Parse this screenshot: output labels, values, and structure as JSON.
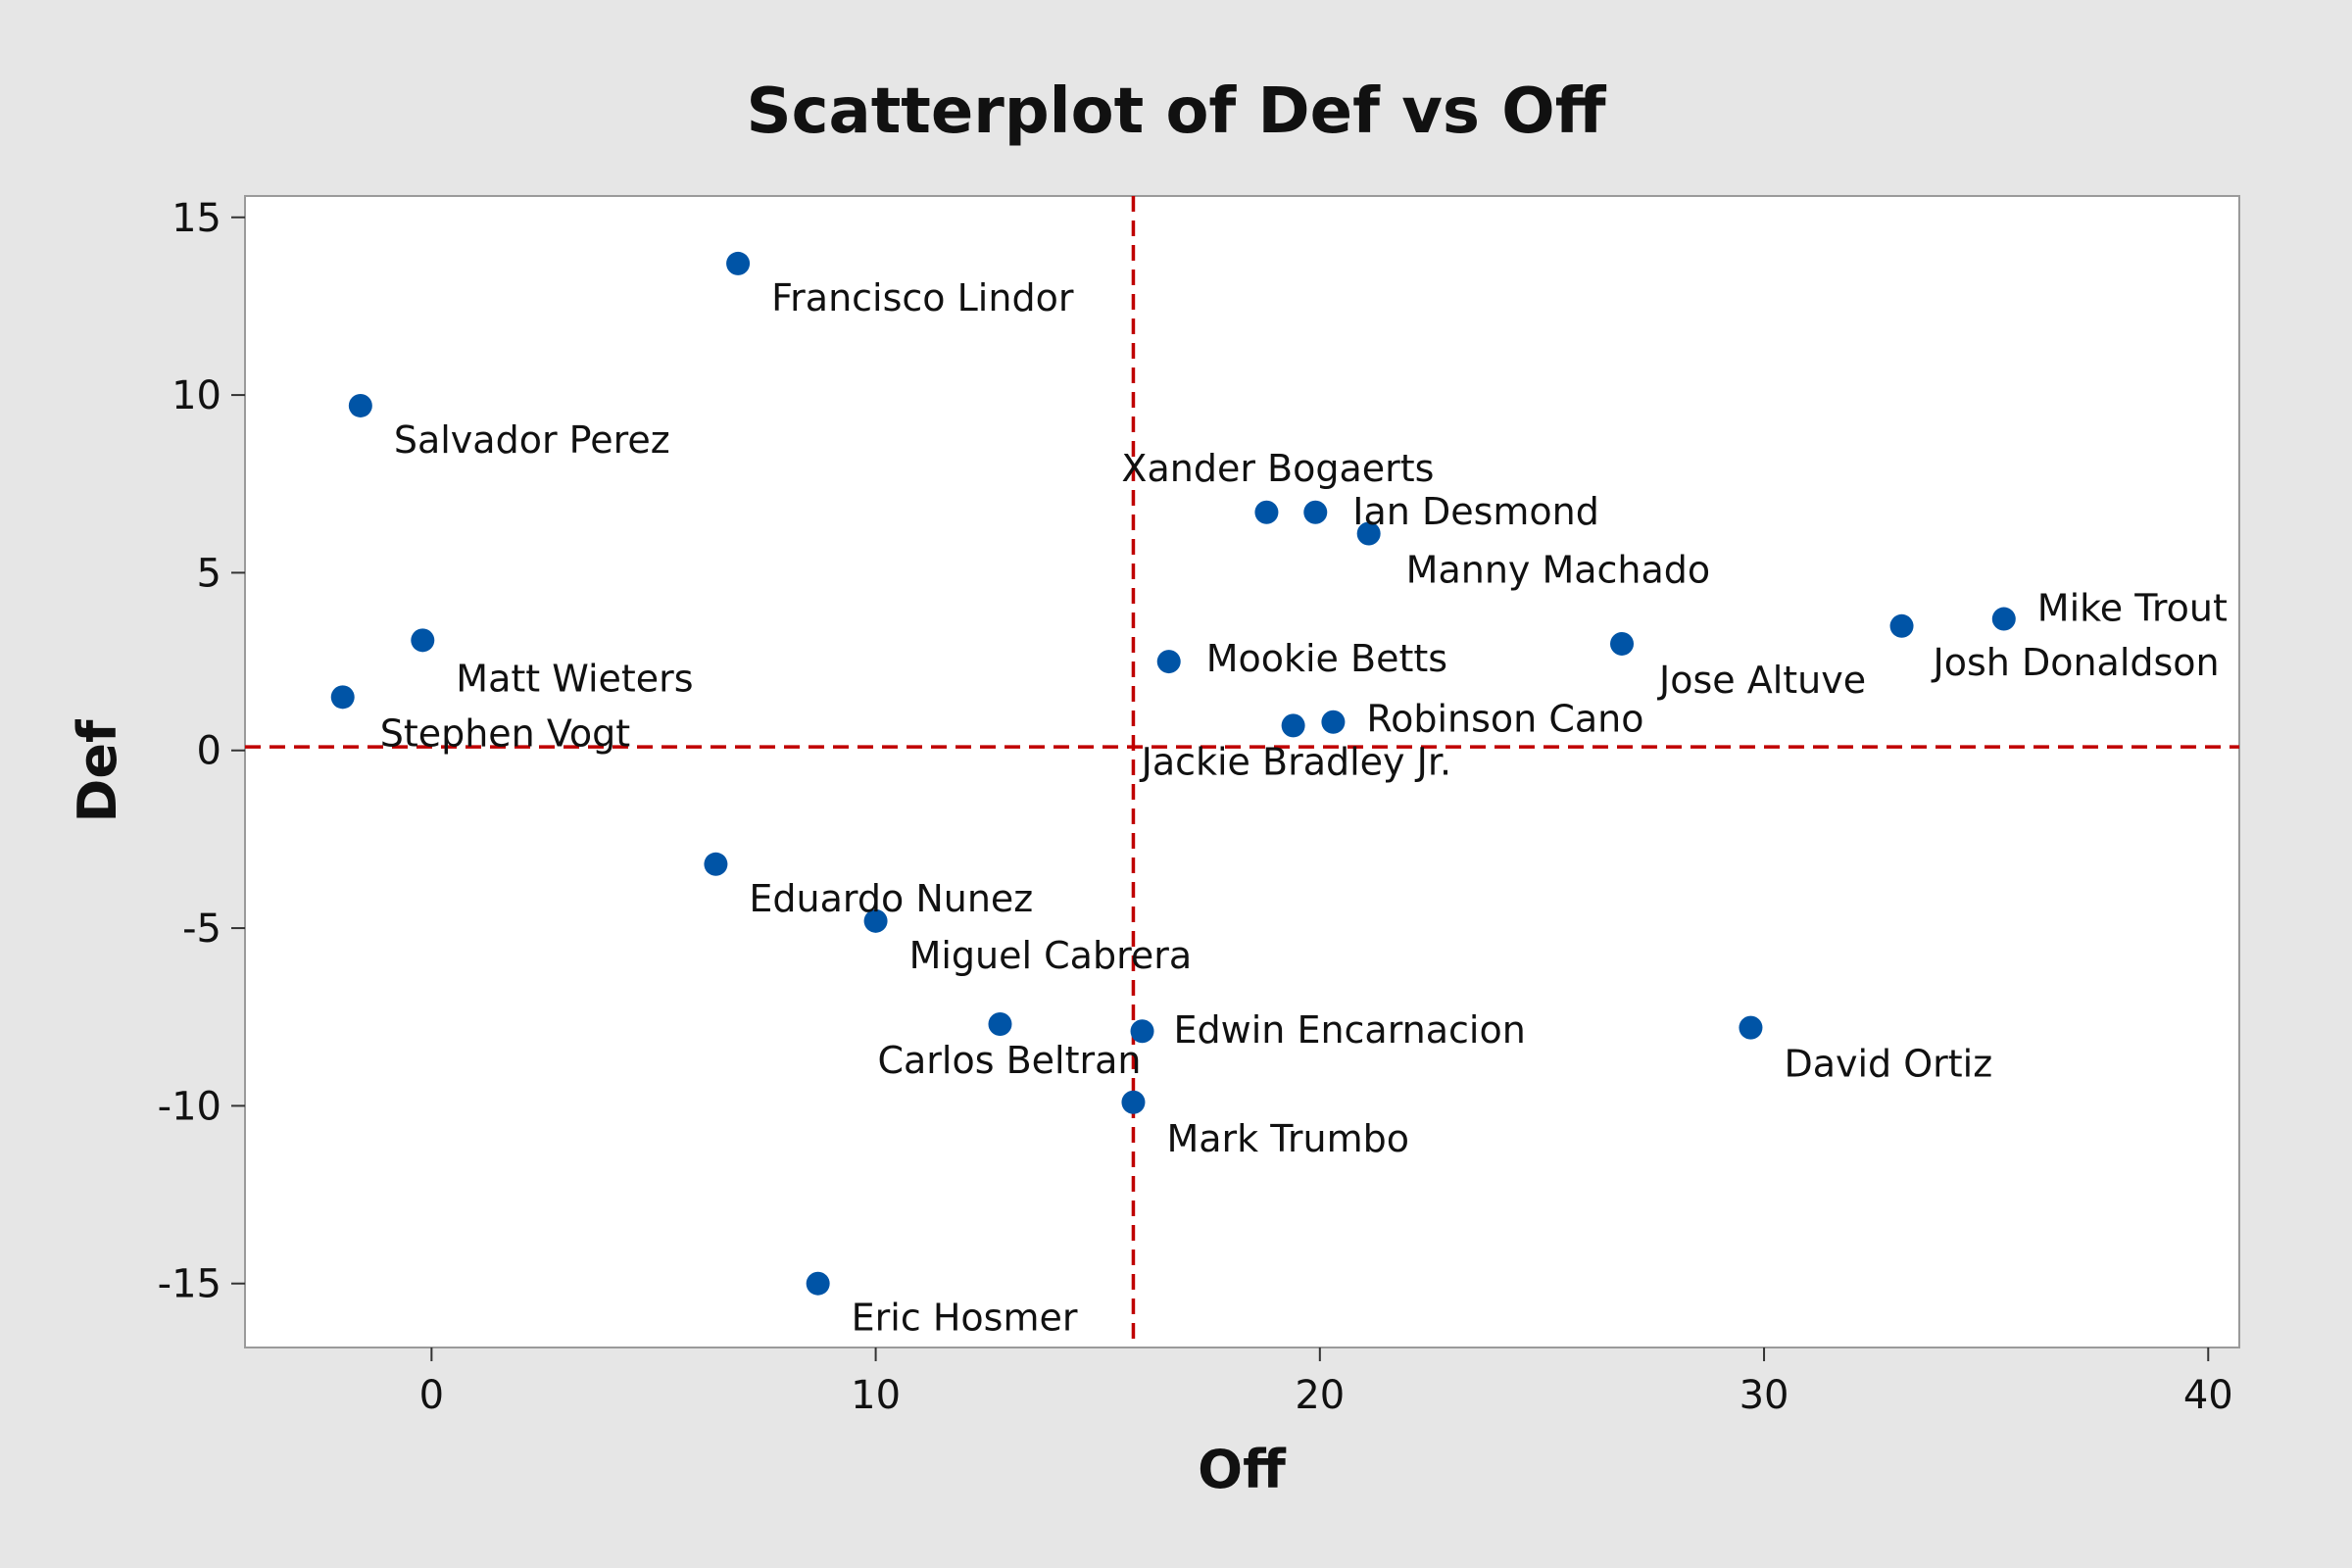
{
  "chart_data": {
    "type": "scatter",
    "title": "Scatterplot of Def vs Off",
    "xlabel": "Off",
    "ylabel": "Def",
    "xlim": [
      -4.2,
      40.7
    ],
    "ylim": [
      -16.8,
      15.6
    ],
    "xticks": [
      0,
      10,
      20,
      30,
      40
    ],
    "yticks": [
      15,
      10,
      5,
      0,
      -5,
      -10,
      -15
    ],
    "grid": false,
    "reference_lines": {
      "x": 15.8,
      "y": 0.1,
      "color": "#c00000",
      "style": "dashed"
    },
    "marker_color": "#0054a6",
    "points": [
      {
        "name": "Francisco Lindor",
        "x": 6.9,
        "y": 13.7
      },
      {
        "name": "Salvador Perez",
        "x": -1.6,
        "y": 9.7
      },
      {
        "name": "Xander Bogaerts",
        "x": 18.8,
        "y": 6.7
      },
      {
        "name": "Ian Desmond",
        "x": 19.9,
        "y": 6.7
      },
      {
        "name": "Manny Machado",
        "x": 21.1,
        "y": 6.1
      },
      {
        "name": "Mike Trout",
        "x": 35.4,
        "y": 3.7
      },
      {
        "name": "Josh Donaldson",
        "x": 33.1,
        "y": 3.5
      },
      {
        "name": "Jose Altuve",
        "x": 26.8,
        "y": 3.0
      },
      {
        "name": "Mookie Betts",
        "x": 16.6,
        "y": 2.5
      },
      {
        "name": "Matt Wieters",
        "x": -0.2,
        "y": 3.1
      },
      {
        "name": "Stephen Vogt",
        "x": -2.0,
        "y": 1.5
      },
      {
        "name": "Robinson Cano",
        "x": 20.3,
        "y": 0.8
      },
      {
        "name": "Jackie Bradley Jr.",
        "x": 19.4,
        "y": 0.7
      },
      {
        "name": "Eduardo Nunez",
        "x": 6.4,
        "y": -3.2
      },
      {
        "name": "Miguel Cabrera",
        "x": 10.0,
        "y": -4.8
      },
      {
        "name": "Carlos Beltran",
        "x": 12.8,
        "y": -7.7
      },
      {
        "name": "Edwin Encarnacion",
        "x": 16.0,
        "y": -7.9
      },
      {
        "name": "David Ortiz",
        "x": 29.7,
        "y": -7.8
      },
      {
        "name": "Mark Trumbo",
        "x": 15.8,
        "y": -9.9
      },
      {
        "name": "Eric Hosmer",
        "x": 8.7,
        "y": -15.0
      }
    ]
  }
}
